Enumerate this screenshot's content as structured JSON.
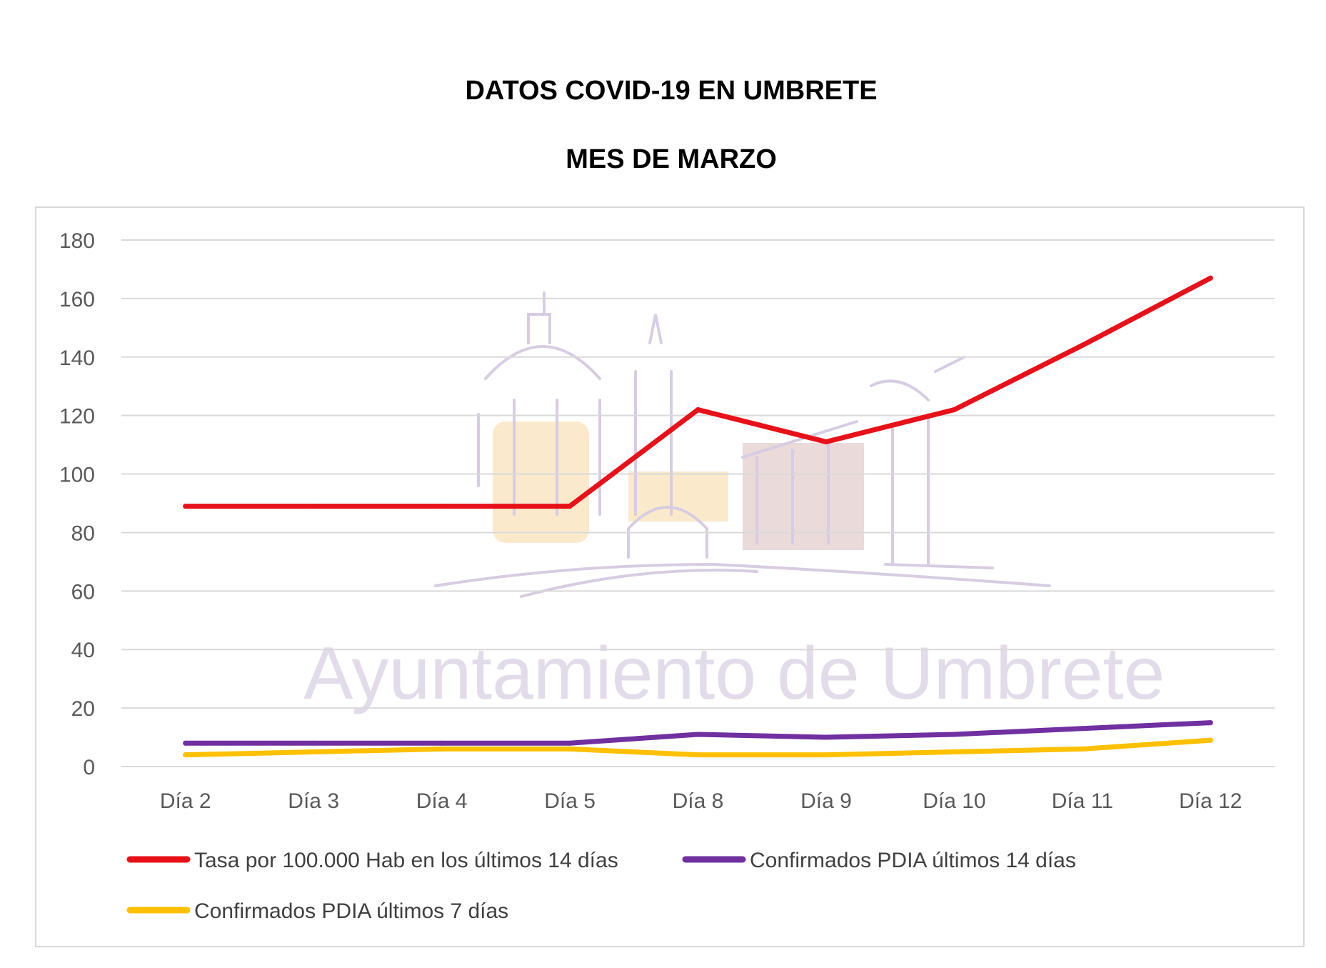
{
  "chart_data": {
    "type": "line",
    "title": "DATOS COVID-19 EN UMBRETE",
    "subtitle": "MES DE MARZO",
    "categories": [
      "Día 2",
      "Día 3",
      "Día 4",
      "Día 5",
      "Día 8",
      "Día 9",
      "Día 10",
      "Día 11",
      "Día 12"
    ],
    "yticks": [
      "0",
      "20",
      "40",
      "60",
      "80",
      "100",
      "120",
      "140",
      "160",
      "180"
    ],
    "ylim": [
      0,
      180
    ],
    "grid": true,
    "legend_position": "bottom",
    "series": [
      {
        "name": "Tasa por 100.000 Hab en los últimos 14 días",
        "color": "#e8111a",
        "values": [
          89,
          89,
          89,
          89,
          122,
          111,
          122,
          144,
          167
        ]
      },
      {
        "name": "Confirmados PDIA últimos 14 días",
        "color": "#7030a0",
        "values": [
          8,
          8,
          8,
          8,
          11,
          10,
          11,
          13,
          15
        ]
      },
      {
        "name": "Confirmados PDIA últimos 7 días",
        "color": "#ffc000",
        "values": [
          4,
          5,
          6,
          6,
          4,
          4,
          5,
          6,
          9
        ]
      }
    ],
    "watermark": "Ayuntamiento de Umbrete"
  }
}
